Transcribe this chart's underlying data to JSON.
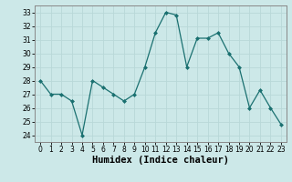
{
  "x": [
    0,
    1,
    2,
    3,
    4,
    5,
    6,
    7,
    8,
    9,
    10,
    11,
    12,
    13,
    14,
    15,
    16,
    17,
    18,
    19,
    20,
    21,
    22,
    23
  ],
  "y": [
    28,
    27,
    27,
    26.5,
    24,
    28,
    27.5,
    27,
    26.5,
    27,
    29,
    31.5,
    33,
    32.8,
    29,
    31.1,
    31.1,
    31.5,
    30,
    29,
    26,
    27.3,
    26,
    24.8
  ],
  "line_color": "#1a7070",
  "marker": "D",
  "marker_size": 2.0,
  "background_color": "#cce8e8",
  "grid_color": "#b8d8d8",
  "xlabel": "Humidex (Indice chaleur)",
  "ylim": [
    23.5,
    33.5
  ],
  "yticks": [
    24,
    25,
    26,
    27,
    28,
    29,
    30,
    31,
    32,
    33
  ],
  "xlim": [
    -0.5,
    23.5
  ],
  "xticks": [
    0,
    1,
    2,
    3,
    4,
    5,
    6,
    7,
    8,
    9,
    10,
    11,
    12,
    13,
    14,
    15,
    16,
    17,
    18,
    19,
    20,
    21,
    22,
    23
  ],
  "xlabel_fontsize": 7.5,
  "tick_fontsize": 5.5
}
